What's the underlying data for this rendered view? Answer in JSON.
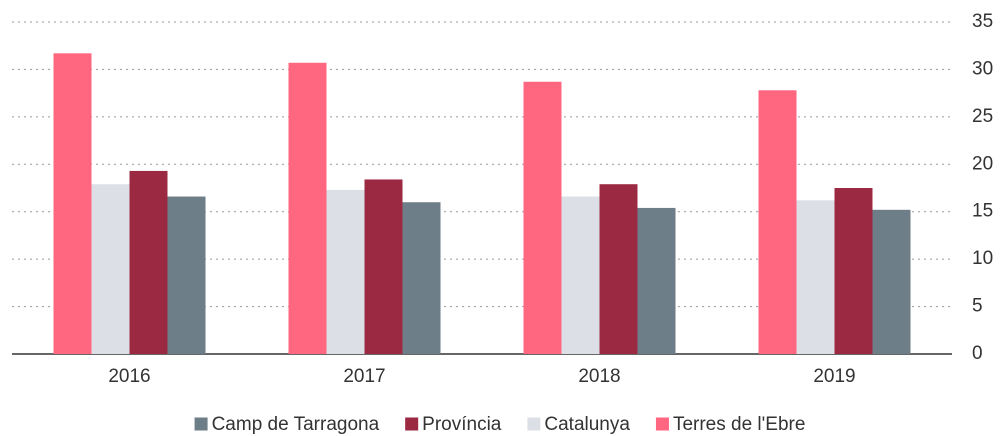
{
  "chart_data": {
    "type": "bar",
    "categories": [
      "2016",
      "2017",
      "2018",
      "2019"
    ],
    "series": [
      {
        "name": "Camp de Tarragona",
        "color": "#6e7e88",
        "values": [
          16.6,
          16.0,
          15.4,
          15.2
        ]
      },
      {
        "name": "Província",
        "color": "#9c2942",
        "values": [
          19.3,
          18.4,
          17.9,
          17.5
        ]
      },
      {
        "name": "Catalunya",
        "color": "#dcdfe6",
        "values": [
          17.9,
          17.3,
          16.6,
          16.2
        ]
      },
      {
        "name": "Terres de l'Ebre",
        "color": "#ff6680",
        "values": [
          31.7,
          30.7,
          28.7,
          27.8
        ]
      }
    ],
    "ylim": [
      0,
      35
    ],
    "yticks": [
      0,
      5,
      10,
      15,
      20,
      25,
      30,
      35
    ],
    "grid": true,
    "legend": "bottom"
  }
}
